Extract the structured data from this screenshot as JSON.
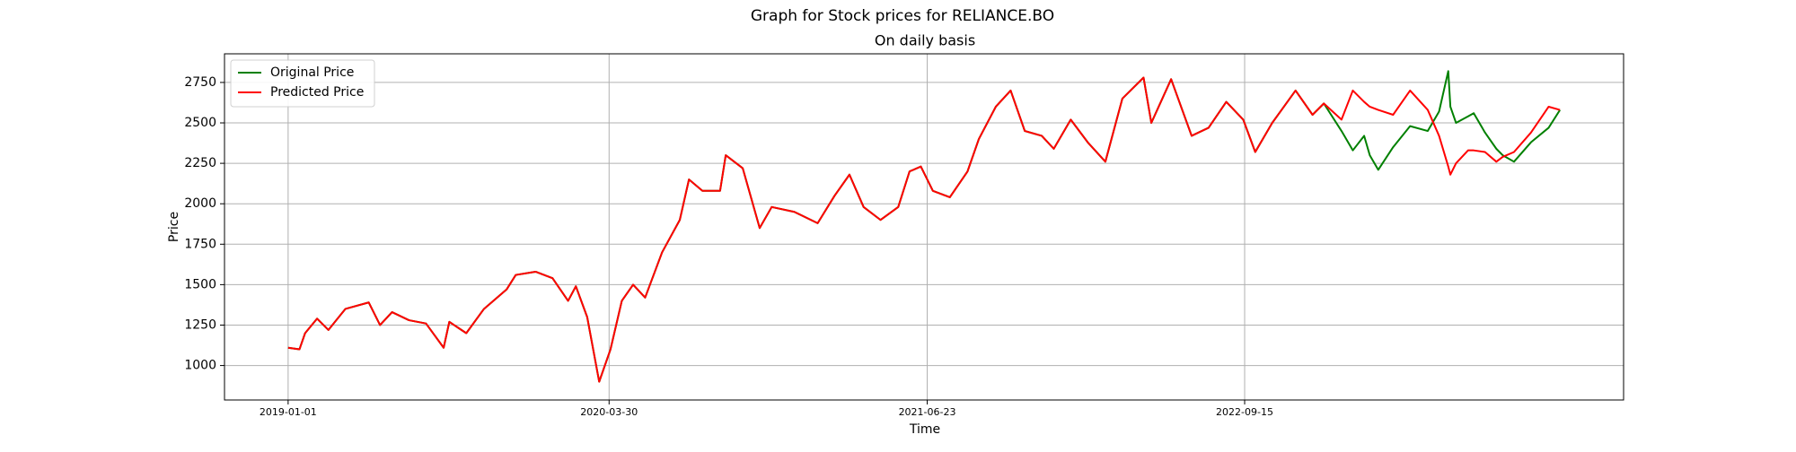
{
  "chart_data": {
    "type": "line",
    "title": "Graph for Stock prices for RELIANCE.BO",
    "subtitle": "On daily basis",
    "xlabel": "Time",
    "ylabel": "Price",
    "x": [
      "2019-01-01",
      "2019-01-17",
      "2019-01-25",
      "2019-02-11",
      "2019-02-27",
      "2019-03-23",
      "2019-04-25",
      "2019-05-11",
      "2019-05-28",
      "2019-06-21",
      "2019-07-15",
      "2019-08-09",
      "2019-08-17",
      "2019-09-10",
      "2019-10-05",
      "2019-11-06",
      "2019-11-19",
      "2019-12-17",
      "2020-01-10",
      "2020-02-01",
      "2020-02-12",
      "2020-02-28",
      "2020-03-16",
      "2020-04-01",
      "2020-04-17",
      "2020-05-03",
      "2020-05-20",
      "2020-06-13",
      "2020-07-08",
      "2020-07-21",
      "2020-08-09",
      "2020-09-03",
      "2020-09-11",
      "2020-10-05",
      "2020-10-29",
      "2020-11-15",
      "2020-12-17",
      "2021-01-19",
      "2021-02-12",
      "2021-03-05",
      "2021-03-25",
      "2021-04-18",
      "2021-05-13",
      "2021-05-29",
      "2021-06-14",
      "2021-07-01",
      "2021-07-25",
      "2021-08-19",
      "2021-09-04",
      "2021-09-28",
      "2021-10-19",
      "2021-11-08",
      "2021-12-02",
      "2021-12-19",
      "2022-01-12",
      "2022-02-05",
      "2022-03-02",
      "2022-03-26",
      "2022-04-25",
      "2022-05-06",
      "2022-06-03",
      "2022-07-02",
      "2022-07-26",
      "2022-08-20",
      "2022-09-13",
      "2022-09-30",
      "2022-10-24",
      "2022-11-26",
      "2022-12-20",
      "2023-01-05",
      "2023-01-30",
      "2023-02-15",
      "2023-03-03",
      "2023-03-11",
      "2023-03-23",
      "2023-04-13",
      "2023-05-07",
      "2023-06-01",
      "2023-06-17",
      "2023-06-30",
      "2023-07-03",
      "2023-07-11",
      "2023-07-28",
      "2023-08-05",
      "2023-08-21",
      "2023-09-06",
      "2023-09-15",
      "2023-10-01",
      "2023-10-25",
      "2023-11-19",
      "2023-12-05"
    ],
    "series": [
      {
        "name": "Original Price",
        "color": "#008000",
        "values": [
          1110,
          1100,
          1200,
          1290,
          1220,
          1350,
          1390,
          1250,
          1330,
          1280,
          1260,
          1110,
          1270,
          1200,
          1350,
          1470,
          1560,
          1580,
          1540,
          1400,
          1490,
          1300,
          900,
          1100,
          1400,
          1500,
          1420,
          1700,
          1900,
          2150,
          2080,
          2080,
          2300,
          2220,
          1850,
          1980,
          1950,
          1880,
          2050,
          2180,
          1980,
          1900,
          1980,
          2200,
          2230,
          2080,
          2040,
          2200,
          2400,
          2600,
          2700,
          2450,
          2420,
          2340,
          2520,
          2380,
          2260,
          2650,
          2780,
          2500,
          2770,
          2420,
          2470,
          2630,
          2520,
          2320,
          2500,
          2700,
          2550,
          2620,
          2450,
          2330,
          2420,
          2300,
          2210,
          2350,
          2480,
          2450,
          2570,
          2820,
          2600,
          2500,
          2540,
          2560,
          2440,
          2340,
          2300,
          2260,
          2380,
          2470,
          2580
        ]
      },
      {
        "name": "Predicted Price",
        "color": "#ff0000",
        "values": [
          1110,
          1100,
          1200,
          1290,
          1220,
          1350,
          1390,
          1250,
          1330,
          1280,
          1260,
          1110,
          1270,
          1200,
          1350,
          1470,
          1560,
          1580,
          1540,
          1400,
          1490,
          1300,
          900,
          1100,
          1400,
          1500,
          1420,
          1700,
          1900,
          2150,
          2080,
          2080,
          2300,
          2220,
          1850,
          1980,
          1950,
          1880,
          2050,
          2180,
          1980,
          1900,
          1980,
          2200,
          2230,
          2080,
          2040,
          2200,
          2400,
          2600,
          2700,
          2450,
          2420,
          2340,
          2520,
          2380,
          2260,
          2650,
          2780,
          2500,
          2770,
          2420,
          2470,
          2630,
          2520,
          2320,
          2500,
          2700,
          2550,
          2620,
          2520,
          2700,
          2630,
          2600,
          2580,
          2550,
          2700,
          2580,
          2420,
          2230,
          2180,
          2250,
          2330,
          2330,
          2320,
          2260,
          2290,
          2320,
          2440,
          2600,
          2580
        ]
      }
    ],
    "xlim": [
      "2018-10-03",
      "2024-03-04"
    ],
    "xticks": [
      "2019-01-01",
      "2020-03-30",
      "2021-06-23",
      "2022-09-15"
    ],
    "ylim": [
      787,
      2927
    ],
    "yticks": [
      1000,
      1250,
      1500,
      1750,
      2000,
      2250,
      2500,
      2750
    ],
    "grid": true,
    "legend": "upper-left"
  }
}
